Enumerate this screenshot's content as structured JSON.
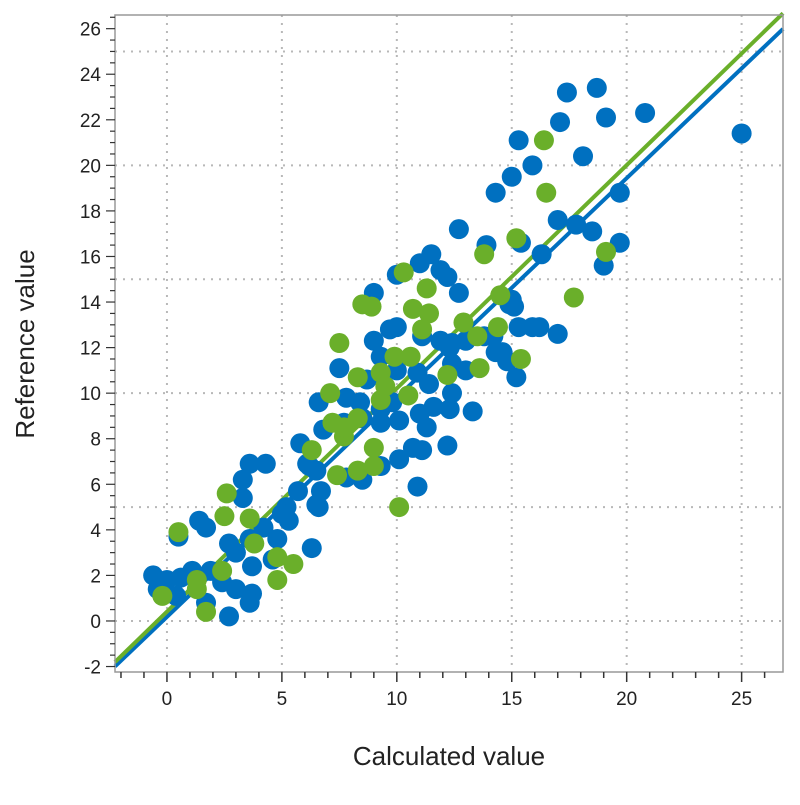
{
  "chart_data": {
    "type": "scatter",
    "xlabel": "Calculated value",
    "ylabel": "Reference value",
    "xlim": [
      -2.26,
      26.8
    ],
    "ylim": [
      -2.24,
      26.6
    ],
    "x_ticks": [
      0,
      5,
      10,
      15,
      20,
      25
    ],
    "y_ticks": [
      -2,
      0,
      2,
      4,
      6,
      8,
      10,
      12,
      14,
      16,
      18,
      20,
      22,
      24,
      26
    ],
    "grid": true,
    "grid_step": 5,
    "colors": {
      "blue": "#0070C0",
      "green": "#6AAF2A",
      "grid": "#b8b8b8",
      "frame": "#999999"
    },
    "series": [
      {
        "color": "#0070C0",
        "fit_line": {
          "slope": 0.963,
          "intercept": 0.18
        },
        "points": [
          [
            18.7,
            23.4
          ],
          [
            17.4,
            23.2
          ],
          [
            17.1,
            21.9
          ],
          [
            19.1,
            22.1
          ],
          [
            20.8,
            22.3
          ],
          [
            25.0,
            21.4
          ],
          [
            15.3,
            21.1
          ],
          [
            18.1,
            20.4
          ],
          [
            15.9,
            20.0
          ],
          [
            15.0,
            19.5
          ],
          [
            14.3,
            18.8
          ],
          [
            19.7,
            18.8
          ],
          [
            19.7,
            16.6
          ],
          [
            19.0,
            15.6
          ],
          [
            18.5,
            17.1
          ],
          [
            17.8,
            17.4
          ],
          [
            17.0,
            17.6
          ],
          [
            16.3,
            16.1
          ],
          [
            15.4,
            16.6
          ],
          [
            13.9,
            16.5
          ],
          [
            12.7,
            17.2
          ],
          [
            12.2,
            15.1
          ],
          [
            12.7,
            14.4
          ],
          [
            15.0,
            14.1
          ],
          [
            15.1,
            13.8
          ],
          [
            15.3,
            12.9
          ],
          [
            15.9,
            12.9
          ],
          [
            16.2,
            12.9
          ],
          [
            17.0,
            12.6
          ],
          [
            15.2,
            10.7
          ],
          [
            14.3,
            11.8
          ],
          [
            14.8,
            11.4
          ],
          [
            13.8,
            12.5
          ],
          [
            12.3,
            12.0
          ],
          [
            13.0,
            11.0
          ],
          [
            12.4,
            10.0
          ],
          [
            11.5,
            16.1
          ],
          [
            11.0,
            15.7
          ],
          [
            11.9,
            15.4
          ],
          [
            10.0,
            15.2
          ],
          [
            9.0,
            14.4
          ],
          [
            9.7,
            12.8
          ],
          [
            10.0,
            12.9
          ],
          [
            9.0,
            12.3
          ],
          [
            11.1,
            12.5
          ],
          [
            11.9,
            12.3
          ],
          [
            12.4,
            12.2
          ],
          [
            13.0,
            12.3
          ],
          [
            14.9,
            13.9
          ],
          [
            14.2,
            12.5
          ],
          [
            7.5,
            11.1
          ],
          [
            9.3,
            11.6
          ],
          [
            8.7,
            10.6
          ],
          [
            10.0,
            11.0
          ],
          [
            10.9,
            10.9
          ],
          [
            11.4,
            10.4
          ],
          [
            12.4,
            11.3
          ],
          [
            14.6,
            11.8
          ],
          [
            6.6,
            9.6
          ],
          [
            7.8,
            9.8
          ],
          [
            8.4,
            9.6
          ],
          [
            9.3,
            9.3
          ],
          [
            9.8,
            9.6
          ],
          [
            11.0,
            9.1
          ],
          [
            11.6,
            9.4
          ],
          [
            13.3,
            9.2
          ],
          [
            12.3,
            9.3
          ],
          [
            5.8,
            7.8
          ],
          [
            6.8,
            8.4
          ],
          [
            7.7,
            8.7
          ],
          [
            8.5,
            8.9
          ],
          [
            9.3,
            8.7
          ],
          [
            10.1,
            8.8
          ],
          [
            11.3,
            8.5
          ],
          [
            12.2,
            7.7
          ],
          [
            10.7,
            7.6
          ],
          [
            11.1,
            7.5
          ],
          [
            10.1,
            7.1
          ],
          [
            6.1,
            6.9
          ],
          [
            6.5,
            6.6
          ],
          [
            7.8,
            6.3
          ],
          [
            8.5,
            6.2
          ],
          [
            9.3,
            6.8
          ],
          [
            5.7,
            5.7
          ],
          [
            6.7,
            5.7
          ],
          [
            10.9,
            5.9
          ],
          [
            6.5,
            5.1
          ],
          [
            5.2,
            5.0
          ],
          [
            -0.6,
            2.0
          ],
          [
            0.0,
            1.8
          ],
          [
            0.6,
            1.9
          ],
          [
            -0.4,
            1.4
          ],
          [
            0.4,
            1.1
          ],
          [
            1.1,
            2.2
          ],
          [
            1.9,
            2.2
          ],
          [
            1.7,
            0.8
          ],
          [
            2.7,
            0.2
          ],
          [
            2.4,
            1.7
          ],
          [
            3.0,
            1.4
          ],
          [
            3.7,
            1.2
          ],
          [
            3.6,
            0.8
          ],
          [
            1.4,
            4.4
          ],
          [
            1.7,
            4.1
          ],
          [
            0.5,
            3.7
          ],
          [
            3.3,
            6.2
          ],
          [
            3.6,
            6.9
          ],
          [
            4.3,
            6.9
          ],
          [
            3.3,
            5.4
          ],
          [
            2.7,
            3.4
          ],
          [
            3.0,
            3.0
          ],
          [
            3.6,
            3.6
          ],
          [
            4.2,
            4.1
          ],
          [
            5.0,
            4.7
          ],
          [
            5.3,
            4.4
          ],
          [
            4.8,
            3.6
          ],
          [
            3.7,
            2.4
          ],
          [
            6.3,
            3.2
          ],
          [
            6.6,
            5.0
          ],
          [
            6.2,
            6.8
          ],
          [
            4.6,
            2.7
          ]
        ]
      },
      {
        "color": "#6AAF2A",
        "fit_line": {
          "slope": 0.98,
          "intercept": 0.41
        },
        "points": [
          [
            16.4,
            21.1
          ],
          [
            16.5,
            18.8
          ],
          [
            15.2,
            16.8
          ],
          [
            13.8,
            16.1
          ],
          [
            19.1,
            16.2
          ],
          [
            14.5,
            14.3
          ],
          [
            17.7,
            14.2
          ],
          [
            12.9,
            13.1
          ],
          [
            14.4,
            12.9
          ],
          [
            13.5,
            12.5
          ],
          [
            15.4,
            11.5
          ],
          [
            13.6,
            11.1
          ],
          [
            12.2,
            10.8
          ],
          [
            10.3,
            15.3
          ],
          [
            11.3,
            14.6
          ],
          [
            8.5,
            13.9
          ],
          [
            8.9,
            13.8
          ],
          [
            10.7,
            13.7
          ],
          [
            11.4,
            13.5
          ],
          [
            11.1,
            12.8
          ],
          [
            7.5,
            12.2
          ],
          [
            9.9,
            11.6
          ],
          [
            10.6,
            11.6
          ],
          [
            8.3,
            10.7
          ],
          [
            9.3,
            10.9
          ],
          [
            9.5,
            10.3
          ],
          [
            10.5,
            9.9
          ],
          [
            7.1,
            10.0
          ],
          [
            9.3,
            9.7
          ],
          [
            7.2,
            8.7
          ],
          [
            8.3,
            8.9
          ],
          [
            7.7,
            8.1
          ],
          [
            6.3,
            7.5
          ],
          [
            9.0,
            7.6
          ],
          [
            7.4,
            6.4
          ],
          [
            8.3,
            6.6
          ],
          [
            9.0,
            6.8
          ],
          [
            10.1,
            5.0
          ],
          [
            0.5,
            3.9
          ],
          [
            -0.2,
            1.1
          ],
          [
            1.3,
            1.8
          ],
          [
            1.3,
            1.4
          ],
          [
            1.7,
            0.4
          ],
          [
            2.6,
            5.6
          ],
          [
            2.5,
            4.6
          ],
          [
            3.6,
            4.5
          ],
          [
            3.8,
            3.4
          ],
          [
            2.4,
            2.2
          ],
          [
            4.8,
            2.8
          ],
          [
            4.8,
            1.8
          ],
          [
            5.5,
            2.5
          ],
          [
            7.7,
            8.5
          ]
        ]
      }
    ]
  }
}
